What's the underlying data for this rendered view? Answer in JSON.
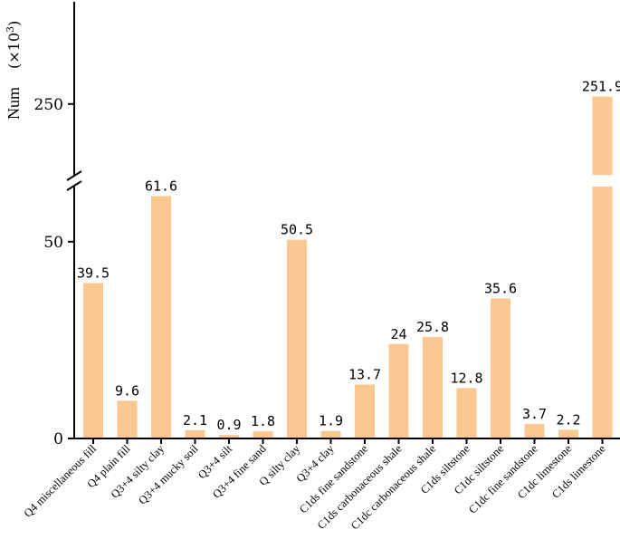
{
  "chart_data": {
    "type": "bar",
    "ylabel": "Num",
    "yunit": "(×10",
    "yunit_exp": "3",
    "yunit_close": ")",
    "categories": [
      "Q4 miscellaneous fill",
      "Q4 plain fill",
      "Q3+4 silty clay",
      "Q3+4 mucky soil",
      "Q3+4 silt",
      "Q3+4 fine sand",
      "Q  silty clay",
      "Q3+4 clay",
      "C1ds fine sandstone",
      "C1ds carbonaceous shale",
      "C1dc carbonaceous shale",
      "C1ds siltstone",
      "C1dc siltstone",
      "C1dc fine sandstone",
      "C1dc limestone",
      "C1ds limestone"
    ],
    "values": [
      39.5,
      9.6,
      61.6,
      2.1,
      0.9,
      1.8,
      50.5,
      1.9,
      13.7,
      24,
      25.8,
      12.8,
      35.6,
      3.7,
      2.2,
      251.9
    ],
    "value_labels": [
      "39.5",
      "9.6",
      "61.6",
      "2.1",
      "0.9",
      "1.8",
      "50.5",
      "1.9",
      "13.7",
      "24",
      "25.8",
      "12.8",
      "35.6",
      "3.7",
      "2.2",
      "251.9"
    ],
    "yticks": [
      0,
      50,
      250
    ],
    "ytick_labels": [
      "0",
      "50",
      "250"
    ],
    "axis_break": {
      "lower_range": [
        0,
        64
      ],
      "upper_range": [
        232,
        264
      ]
    },
    "bar_color": "#FBC892",
    "grid": false,
    "legend": "none"
  }
}
